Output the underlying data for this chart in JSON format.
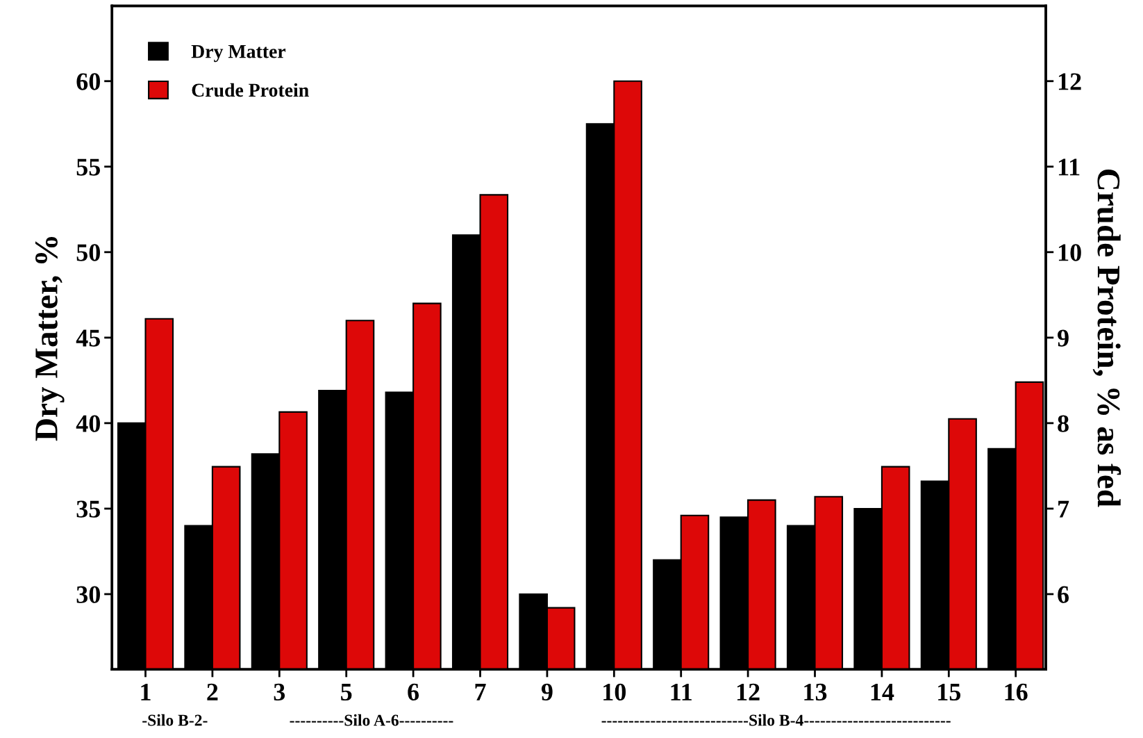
{
  "chart_data": {
    "type": "bar",
    "categories": [
      "1",
      "2",
      "3",
      "5",
      "6",
      "7",
      "9",
      "10",
      "11",
      "12",
      "13",
      "14",
      "15",
      "16"
    ],
    "series": [
      {
        "name": "Dry Matter",
        "color": "#000000",
        "values": [
          40.0,
          34.0,
          38.2,
          41.9,
          41.8,
          51.0,
          30.0,
          57.5,
          32.0,
          34.5,
          34.0,
          35.0,
          36.6,
          38.5
        ]
      },
      {
        "name": "Crude Protein",
        "color": "#dd0808",
        "axis": "y2",
        "values": [
          9.22,
          7.49,
          8.13,
          9.2,
          9.4,
          10.67,
          5.84,
          12.0,
          6.92,
          7.1,
          7.14,
          7.49,
          8.05,
          8.48
        ]
      }
    ],
    "ylabel": "Dry Matter, %",
    "y2label": "Crude Protein, % as fed",
    "ylim": [
      25.6,
      64.4
    ],
    "yticks": [
      30,
      35,
      40,
      45,
      50,
      55,
      60
    ],
    "y2lim": [
      5.12,
      12.88
    ],
    "y2ticks": [
      6,
      7,
      8,
      9,
      10,
      11,
      12
    ],
    "annotations": [
      "-Silo B-2-",
      "----------Silo A-6----------",
      "---------------------------Silo B-4---------------------------"
    ],
    "legend": "top left",
    "grid": false
  }
}
